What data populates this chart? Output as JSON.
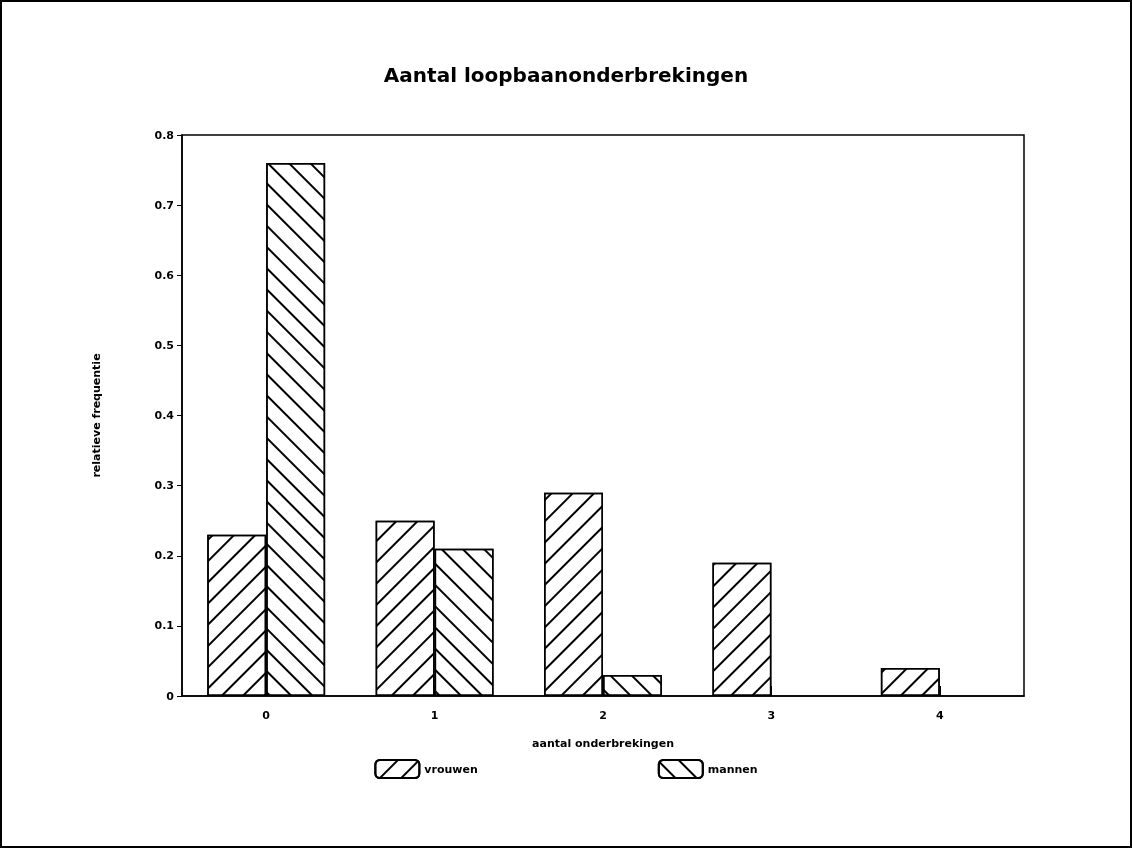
{
  "chart_data": {
    "type": "bar",
    "title": "Aantal loopbaanonderbrekingen",
    "xlabel": "aantal onderbrekingen",
    "ylabel": "relatieve frequentie",
    "categories": [
      "0",
      "1",
      "2",
      "3",
      "4"
    ],
    "series": [
      {
        "name": "vrouwen",
        "color": "#ffffff",
        "values": [
          0.23,
          0.25,
          0.29,
          0.19,
          0.04
        ]
      },
      {
        "name": "mannen",
        "color": "#ffffff",
        "values": [
          0.76,
          0.21,
          0.03,
          null,
          null
        ]
      }
    ],
    "ylim": [
      0,
      0.8
    ],
    "yticks": [
      0,
      0.1,
      0.2,
      0.3,
      0.4,
      0.5,
      0.6,
      0.7,
      0.8
    ],
    "grid": false,
    "legend": "bottom"
  }
}
